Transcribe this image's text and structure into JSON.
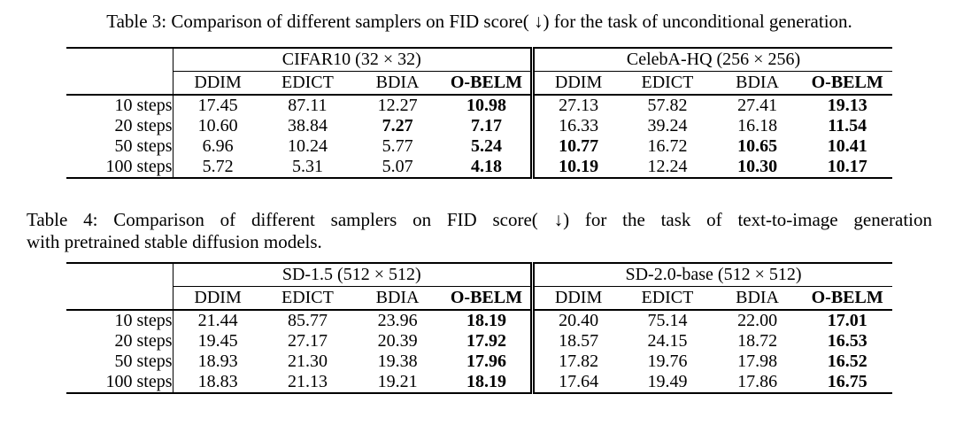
{
  "page": {
    "background": "#ffffff",
    "text_color": "#000000",
    "rule_color": "#000000"
  },
  "table3": {
    "caption": "Table 3: Comparison of different samplers on FID score( ↓) for the task of unconditional generation.",
    "group1": "CIFAR10 (32 × 32)",
    "group2": "CelebA-HQ (256 × 256)",
    "col_headers": [
      {
        "t": "DDIM",
        "b": false
      },
      {
        "t": "EDICT",
        "b": false
      },
      {
        "t": "BDIA",
        "b": false
      },
      {
        "t": "O-BELM",
        "b": true
      },
      {
        "t": "DDIM",
        "b": false
      },
      {
        "t": "EDICT",
        "b": false
      },
      {
        "t": "BDIA",
        "b": false
      },
      {
        "t": "O-BELM",
        "b": true
      }
    ],
    "rows": [
      {
        "label": "10 steps",
        "c": [
          {
            "t": "17.45",
            "b": false
          },
          {
            "t": "87.11",
            "b": false
          },
          {
            "t": "12.27",
            "b": false
          },
          {
            "t": "10.98",
            "b": true
          },
          {
            "t": "27.13",
            "b": false
          },
          {
            "t": "57.82",
            "b": false
          },
          {
            "t": "27.41",
            "b": false
          },
          {
            "t": "19.13",
            "b": true
          }
        ]
      },
      {
        "label": "20 steps",
        "c": [
          {
            "t": "10.60",
            "b": false
          },
          {
            "t": "38.84",
            "b": false
          },
          {
            "t": "7.27",
            "b": true
          },
          {
            "t": "7.17",
            "b": true
          },
          {
            "t": "16.33",
            "b": false
          },
          {
            "t": "39.24",
            "b": false
          },
          {
            "t": "16.18",
            "b": false
          },
          {
            "t": "11.54",
            "b": true
          }
        ]
      },
      {
        "label": "50 steps",
        "c": [
          {
            "t": "6.96",
            "b": false
          },
          {
            "t": "10.24",
            "b": false
          },
          {
            "t": "5.77",
            "b": false
          },
          {
            "t": "5.24",
            "b": true
          },
          {
            "t": "10.77",
            "b": true
          },
          {
            "t": "16.72",
            "b": false
          },
          {
            "t": "10.65",
            "b": true
          },
          {
            "t": "10.41",
            "b": true
          }
        ]
      },
      {
        "label": "100 steps",
        "c": [
          {
            "t": "5.72",
            "b": false
          },
          {
            "t": "5.31",
            "b": false
          },
          {
            "t": "5.07",
            "b": false
          },
          {
            "t": "4.18",
            "b": true
          },
          {
            "t": "10.19",
            "b": true
          },
          {
            "t": "12.24",
            "b": false
          },
          {
            "t": "10.30",
            "b": true
          },
          {
            "t": "10.17",
            "b": true
          }
        ]
      }
    ]
  },
  "table4": {
    "caption_line1": "Table 4: Comparison of different samplers on FID score( ↓) for the task of text-to-image generation",
    "caption_line2": "with pretrained stable diffusion models.",
    "group1": "SD-1.5 (512 × 512)",
    "group2": "SD-2.0-base (512 × 512)",
    "col_headers": [
      {
        "t": "DDIM",
        "b": false
      },
      {
        "t": "EDICT",
        "b": false
      },
      {
        "t": "BDIA",
        "b": false
      },
      {
        "t": "O-BELM",
        "b": true
      },
      {
        "t": "DDIM",
        "b": false
      },
      {
        "t": "EDICT",
        "b": false
      },
      {
        "t": "BDIA",
        "b": false
      },
      {
        "t": "O-BELM",
        "b": true
      }
    ],
    "rows": [
      {
        "label": "10 steps",
        "c": [
          {
            "t": "21.44",
            "b": false
          },
          {
            "t": "85.77",
            "b": false
          },
          {
            "t": "23.96",
            "b": false
          },
          {
            "t": "18.19",
            "b": true
          },
          {
            "t": "20.40",
            "b": false
          },
          {
            "t": "75.14",
            "b": false
          },
          {
            "t": "22.00",
            "b": false
          },
          {
            "t": "17.01",
            "b": true
          }
        ]
      },
      {
        "label": "20 steps",
        "c": [
          {
            "t": "19.45",
            "b": false
          },
          {
            "t": "27.17",
            "b": false
          },
          {
            "t": "20.39",
            "b": false
          },
          {
            "t": "17.92",
            "b": true
          },
          {
            "t": "18.57",
            "b": false
          },
          {
            "t": "24.15",
            "b": false
          },
          {
            "t": "18.72",
            "b": false
          },
          {
            "t": "16.53",
            "b": true
          }
        ]
      },
      {
        "label": "50 steps",
        "c": [
          {
            "t": "18.93",
            "b": false
          },
          {
            "t": "21.30",
            "b": false
          },
          {
            "t": "19.38",
            "b": false
          },
          {
            "t": "17.96",
            "b": true
          },
          {
            "t": "17.82",
            "b": false
          },
          {
            "t": "19.76",
            "b": false
          },
          {
            "t": "17.98",
            "b": false
          },
          {
            "t": "16.52",
            "b": true
          }
        ]
      },
      {
        "label": "100 steps",
        "c": [
          {
            "t": "18.83",
            "b": false
          },
          {
            "t": "21.13",
            "b": false
          },
          {
            "t": "19.21",
            "b": false
          },
          {
            "t": "18.19",
            "b": true
          },
          {
            "t": "17.64",
            "b": false
          },
          {
            "t": "19.49",
            "b": false
          },
          {
            "t": "17.86",
            "b": false
          },
          {
            "t": "16.75",
            "b": true
          }
        ]
      }
    ]
  }
}
